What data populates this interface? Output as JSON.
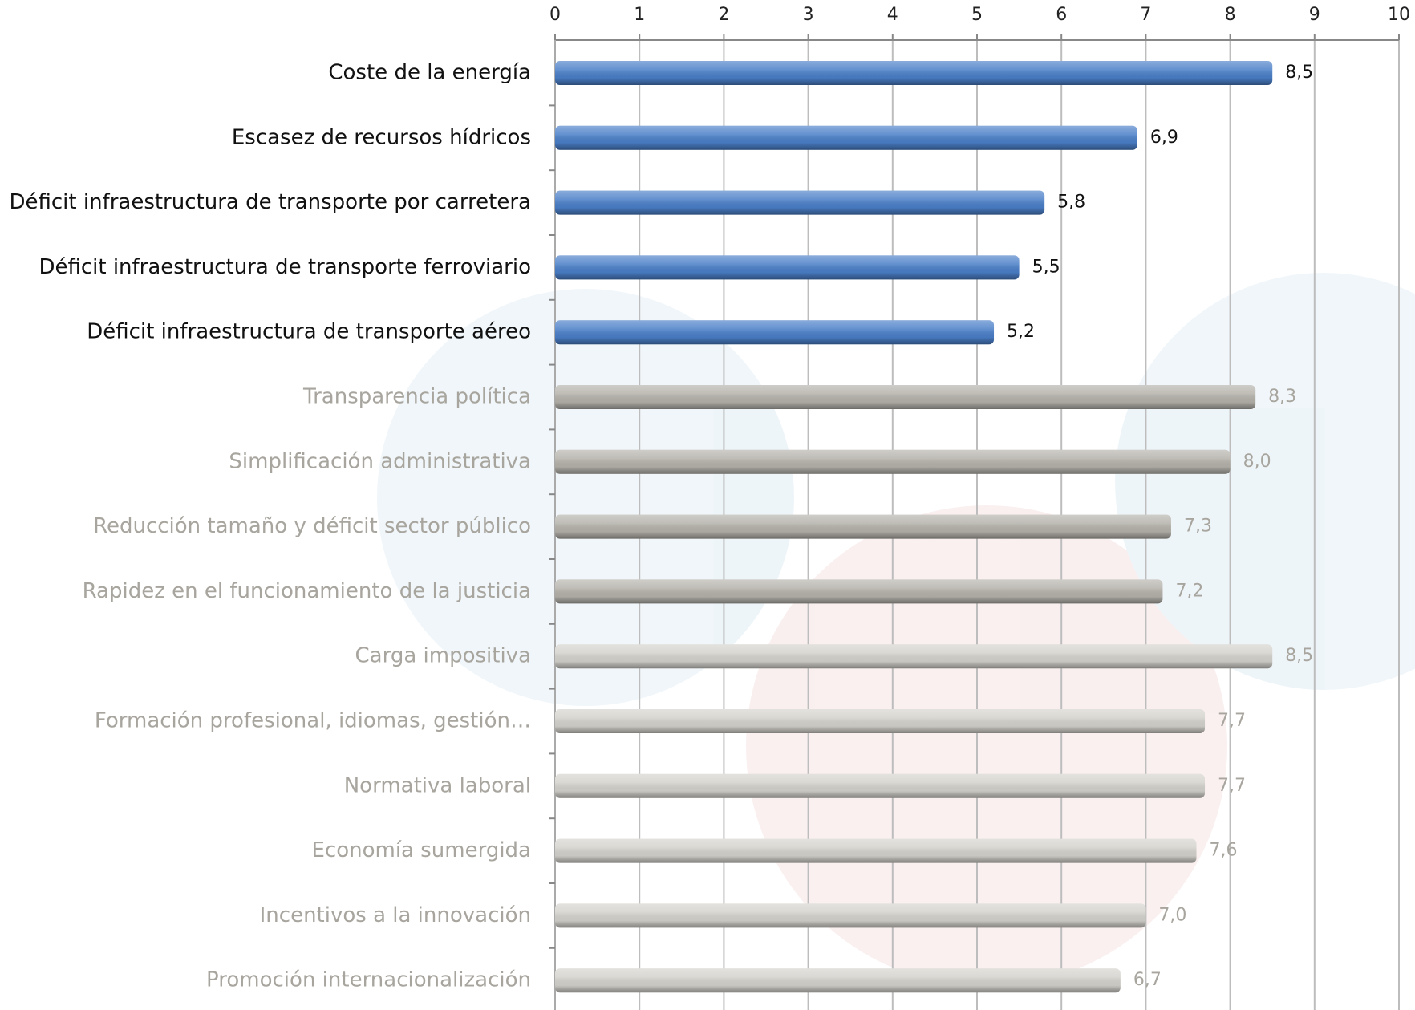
{
  "chart_data": {
    "type": "hbar",
    "categories": [
      "Coste de la energía",
      "Escasez de recursos hídricos",
      "Déficit infraestructura de transporte por carretera",
      "Déficit infraestructura de transporte ferroviario",
      "Déficit infraestructura de transporte aéreo",
      "Transparencia política",
      "Simplificación administrativa",
      "Reducción tamaño y déficit sector público",
      "Rapidez en el funcionamiento de la justicia",
      "Carga impositiva",
      "Formación profesional, idiomas, gestión…",
      "Normativa laboral",
      "Economía sumergida",
      "Incentivos a la innovación",
      "Promoción internacionalización"
    ],
    "values": [
      8.5,
      6.9,
      5.8,
      5.5,
      5.2,
      8.3,
      8.0,
      7.3,
      7.2,
      8.5,
      7.7,
      7.7,
      7.6,
      7.0,
      6.7
    ],
    "value_labels": [
      "8,5",
      "6,9",
      "5,8",
      "5,5",
      "5,2",
      "8,3",
      "8,0",
      "7,3",
      "7,2",
      "8,5",
      "7,7",
      "7,7",
      "7,6",
      "7,0",
      "6,7"
    ],
    "colors": [
      "#4a7fc8",
      "#4a7fc8",
      "#4a7fc8",
      "#4a7fc8",
      "#4a7fc8",
      "#b5b2ab",
      "#b5b2ab",
      "#b5b2ab",
      "#b5b2ab",
      "#d4d2cc",
      "#d4d2cc",
      "#d4d2cc",
      "#d4d2cc",
      "#d4d2cc",
      "#d4d2cc"
    ],
    "label_colors": [
      "#111111",
      "#111111",
      "#111111",
      "#111111",
      "#111111",
      "#a8a59e",
      "#a8a59e",
      "#a8a59e",
      "#a8a59e",
      "#a8a59e",
      "#a8a59e",
      "#a8a59e",
      "#a8a59e",
      "#a8a59e",
      "#a8a59e"
    ],
    "xlim": [
      0,
      10
    ],
    "xticks": [
      0,
      1,
      2,
      3,
      4,
      5,
      6,
      7,
      8,
      9,
      10
    ],
    "grid": true
  }
}
